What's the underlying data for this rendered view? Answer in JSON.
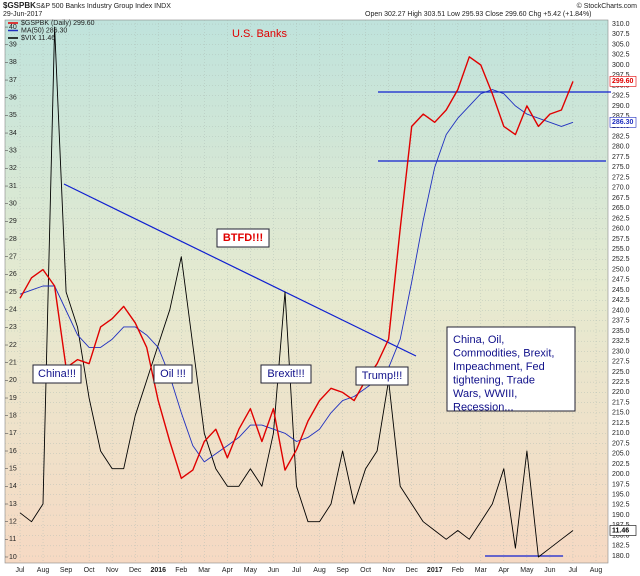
{
  "chart_data": {
    "type": "line",
    "ticker": "$GSPBK",
    "title": "S&P 500 Banks Industry Group Index INDX",
    "date": "29-Jun-2017",
    "ohlc": "Open 302.27  High 303.51  Low 295.93  Close 299.60  Chg +5.42 (+1.84%)",
    "credit": "© StockCharts.com",
    "annotations": [
      "U.S. Banks",
      "BTFD!!!",
      "China!!!",
      "Oil !!!",
      "Brexit!!!",
      "Trump!!!"
    ],
    "note_lines": [
      "China, Oil,",
      "Commodities, Brexit,",
      "Impeachment, Fed",
      "tightening, Trade",
      "Wars, WWIII,",
      "Recession..."
    ],
    "categories": [
      "Jul",
      null,
      "Aug",
      null,
      "Sep",
      null,
      "Oct",
      null,
      "Nov",
      null,
      "Dec",
      null,
      "2016",
      null,
      "Feb",
      null,
      "Mar",
      null,
      "Apr",
      null,
      "May",
      null,
      "Jun",
      null,
      "Jul",
      null,
      "Aug",
      null,
      "Sep",
      null,
      "Oct",
      null,
      "Nov",
      null,
      "Dec",
      null,
      "2017",
      null,
      "Feb",
      null,
      "Mar",
      null,
      "Apr",
      null,
      "May",
      null,
      "Jun",
      null,
      "Jul",
      null,
      "Aug",
      null
    ],
    "series": [
      {
        "name": "$GSPBK (Daily) 299.60",
        "last_label": "299.60",
        "color": "#e00000",
        "axis": "y2",
        "values": [
          243,
          248,
          250,
          246,
          226,
          228,
          227,
          236,
          238,
          241,
          237,
          231,
          218,
          208,
          199,
          201,
          208,
          211,
          204,
          211,
          216,
          208,
          216,
          201,
          206,
          213,
          218,
          221,
          220,
          218,
          223,
          227,
          233,
          260,
          285,
          288,
          286,
          289,
          294,
          302,
          300,
          293,
          285,
          283,
          290,
          285,
          288,
          289,
          296,
          null,
          null,
          null
        ]
      },
      {
        "name": "MA(50) 286.30",
        "last_label": "286.30",
        "color": "#2030c0",
        "axis": "y2",
        "values": [
          244,
          245,
          246,
          246,
          240,
          234,
          231,
          231,
          233,
          236,
          236,
          234,
          231,
          224,
          215,
          207,
          203,
          205,
          207,
          209,
          212,
          212,
          211,
          210,
          208,
          209,
          211,
          215,
          218,
          219,
          221,
          223,
          226,
          233,
          247,
          262,
          275,
          283,
          287,
          290,
          293,
          294,
          293,
          290,
          288,
          287,
          286,
          285,
          286,
          null,
          null,
          null
        ]
      },
      {
        "name": "$VIX 11.46",
        "last_label": "11.46",
        "color": "#000000",
        "axis": "y",
        "values": [
          12.5,
          12,
          13,
          40,
          25,
          23,
          19,
          16,
          15,
          15,
          18,
          20,
          22,
          24,
          27,
          22,
          17,
          15,
          14,
          14,
          15,
          14,
          17,
          25,
          14,
          12,
          12,
          13,
          16,
          13,
          15,
          16,
          20,
          14,
          13,
          12,
          11.5,
          11,
          11.5,
          11,
          12,
          13,
          15,
          10.5,
          16,
          10,
          10.5,
          11,
          11.5,
          null,
          null,
          null
        ]
      }
    ],
    "ylim": [
      9.66,
      40.4
    ],
    "yticks": [
      10,
      11,
      12,
      13,
      14,
      15,
      16,
      17,
      18,
      19,
      20,
      21,
      22,
      23,
      24,
      25,
      26,
      27,
      28,
      29,
      30,
      31,
      32,
      33,
      34,
      35,
      36,
      37,
      38,
      39,
      40
    ],
    "y2lim": [
      178.3,
      311
    ],
    "y2ticks": [
      {
        "value": 180,
        "label": "180.0"
      },
      {
        "value": 182.5,
        "label": "182.5"
      },
      {
        "value": 185,
        "label": "185.0"
      },
      {
        "value": 187.5,
        "label": "187.5"
      },
      {
        "value": 190,
        "label": "190.0"
      },
      {
        "value": 192.5,
        "label": "192.5"
      },
      {
        "value": 195,
        "label": "195.0"
      },
      {
        "value": 197.5,
        "label": "197.5"
      },
      {
        "value": 200,
        "label": "200.0"
      },
      {
        "value": 202.5,
        "label": "202.5"
      },
      {
        "value": 205,
        "label": "205.0"
      },
      {
        "value": 207.5,
        "label": "207.5"
      },
      {
        "value": 210,
        "label": "210.0"
      },
      {
        "value": 212.5,
        "label": "212.5"
      },
      {
        "value": 215,
        "label": "215.0"
      },
      {
        "value": 217.5,
        "label": "217.5"
      },
      {
        "value": 220,
        "label": "220.0"
      },
      {
        "value": 222.5,
        "label": "222.5"
      },
      {
        "value": 225,
        "label": "225.0"
      },
      {
        "value": 227.5,
        "label": "227.5"
      },
      {
        "value": 230,
        "label": "230.0"
      },
      {
        "value": 232.5,
        "label": "232.5"
      },
      {
        "value": 235,
        "label": "235.0"
      },
      {
        "value": 237.5,
        "label": "237.5"
      },
      {
        "value": 240,
        "label": "240.0"
      },
      {
        "value": 242.5,
        "label": "242.5"
      },
      {
        "value": 245,
        "label": "245.0"
      },
      {
        "value": 247.5,
        "label": "247.5"
      },
      {
        "value": 250,
        "label": "250.0"
      },
      {
        "value": 252.5,
        "label": "252.5"
      },
      {
        "value": 255,
        "label": "255.0"
      },
      {
        "value": 257.5,
        "label": "257.5"
      },
      {
        "value": 260,
        "label": "260.0"
      },
      {
        "value": 262.5,
        "label": "262.5"
      },
      {
        "value": 265,
        "label": "265.0"
      },
      {
        "value": 267.5,
        "label": "267.5"
      },
      {
        "value": 270,
        "label": "270.0"
      },
      {
        "value": 272.5,
        "label": "272.5"
      },
      {
        "value": 275,
        "label": "275.0"
      },
      {
        "value": 277.5,
        "label": "277.5"
      },
      {
        "value": 280,
        "label": "280.0"
      },
      {
        "value": 282.5,
        "label": "282.5"
      },
      {
        "value": 285,
        "label": "285.0"
      },
      {
        "value": 287.5,
        "label": "287.5"
      },
      {
        "value": 290,
        "label": "290.0"
      },
      {
        "value": 292.5,
        "label": "292.5"
      },
      {
        "value": 295,
        "label": "295.0"
      },
      {
        "value": 297.5,
        "label": "297.5"
      },
      {
        "value": 300,
        "label": "300.0"
      },
      {
        "value": 302.5,
        "label": "302.5"
      },
      {
        "value": 305,
        "label": "305.0"
      },
      {
        "value": 307.5,
        "label": "307.5"
      },
      {
        "value": 310,
        "label": "310.0"
      }
    ],
    "grid": true
  }
}
